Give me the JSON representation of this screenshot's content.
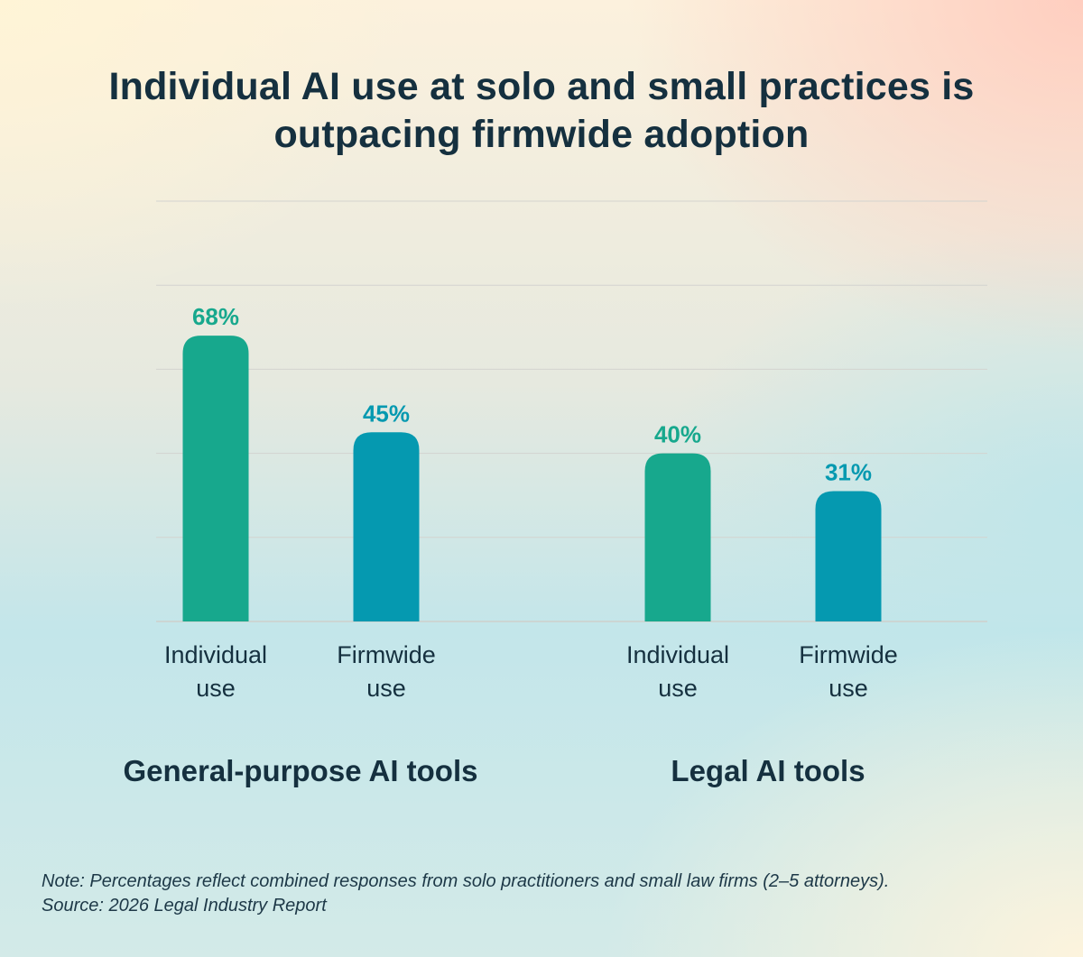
{
  "chart_data": {
    "type": "bar",
    "title": "Individual AI use at solo and small practices is outpacing firmwide adoption",
    "groups": [
      {
        "name": "General-purpose AI tools",
        "bars": [
          {
            "label": [
              "Individual",
              "use"
            ],
            "value": 68,
            "value_label": "68%",
            "color": "#17a88d"
          },
          {
            "label": [
              "Firmwide",
              "use"
            ],
            "value": 45,
            "value_label": "45%",
            "color": "#0599b0"
          }
        ]
      },
      {
        "name": "Legal AI tools",
        "bars": [
          {
            "label": [
              "Individual",
              "use"
            ],
            "value": 40,
            "value_label": "40%",
            "color": "#17a88d"
          },
          {
            "label": [
              "Firmwide",
              "use"
            ],
            "value": 31,
            "value_label": "31%",
            "color": "#0599b0"
          }
        ]
      }
    ],
    "ylim": [
      0,
      100
    ],
    "grid": true,
    "legend": "none"
  },
  "note": "Note: Percentages reflect combined responses from solo practitioners and small law firms (2–5 attorneys).",
  "source": "Source: 2026 Legal Industry Report"
}
